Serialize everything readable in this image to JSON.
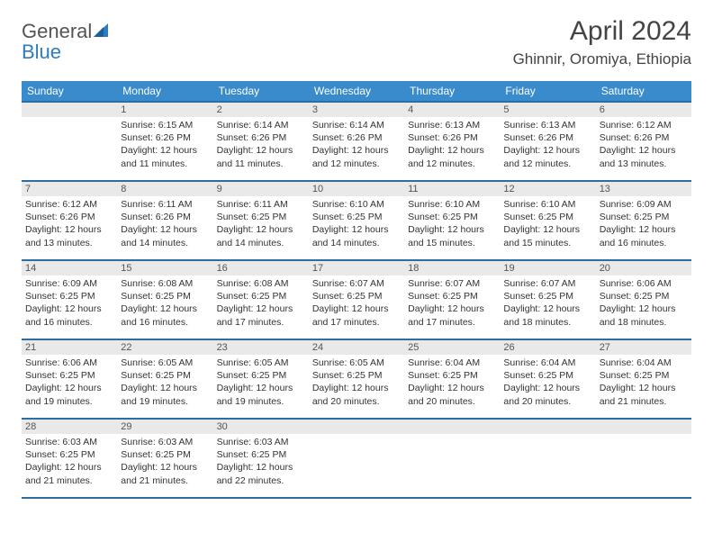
{
  "brand": {
    "name1": "General",
    "name2": "Blue"
  },
  "title": "April 2024",
  "location": "Ghinnir, Oromiya, Ethiopia",
  "weekdays": [
    "Sunday",
    "Monday",
    "Tuesday",
    "Wednesday",
    "Thursday",
    "Friday",
    "Saturday"
  ],
  "colors": {
    "header_bg": "#3a8bcb",
    "header_border": "#2c6da3",
    "daynum_bg": "#e9e9e9"
  },
  "weeks": [
    [
      {
        "day": "",
        "sunrise": "",
        "sunset": "",
        "daylight": ""
      },
      {
        "day": "1",
        "sunrise": "Sunrise: 6:15 AM",
        "sunset": "Sunset: 6:26 PM",
        "daylight": "Daylight: 12 hours and 11 minutes."
      },
      {
        "day": "2",
        "sunrise": "Sunrise: 6:14 AM",
        "sunset": "Sunset: 6:26 PM",
        "daylight": "Daylight: 12 hours and 11 minutes."
      },
      {
        "day": "3",
        "sunrise": "Sunrise: 6:14 AM",
        "sunset": "Sunset: 6:26 PM",
        "daylight": "Daylight: 12 hours and 12 minutes."
      },
      {
        "day": "4",
        "sunrise": "Sunrise: 6:13 AM",
        "sunset": "Sunset: 6:26 PM",
        "daylight": "Daylight: 12 hours and 12 minutes."
      },
      {
        "day": "5",
        "sunrise": "Sunrise: 6:13 AM",
        "sunset": "Sunset: 6:26 PM",
        "daylight": "Daylight: 12 hours and 12 minutes."
      },
      {
        "day": "6",
        "sunrise": "Sunrise: 6:12 AM",
        "sunset": "Sunset: 6:26 PM",
        "daylight": "Daylight: 12 hours and 13 minutes."
      }
    ],
    [
      {
        "day": "7",
        "sunrise": "Sunrise: 6:12 AM",
        "sunset": "Sunset: 6:26 PM",
        "daylight": "Daylight: 12 hours and 13 minutes."
      },
      {
        "day": "8",
        "sunrise": "Sunrise: 6:11 AM",
        "sunset": "Sunset: 6:26 PM",
        "daylight": "Daylight: 12 hours and 14 minutes."
      },
      {
        "day": "9",
        "sunrise": "Sunrise: 6:11 AM",
        "sunset": "Sunset: 6:25 PM",
        "daylight": "Daylight: 12 hours and 14 minutes."
      },
      {
        "day": "10",
        "sunrise": "Sunrise: 6:10 AM",
        "sunset": "Sunset: 6:25 PM",
        "daylight": "Daylight: 12 hours and 14 minutes."
      },
      {
        "day": "11",
        "sunrise": "Sunrise: 6:10 AM",
        "sunset": "Sunset: 6:25 PM",
        "daylight": "Daylight: 12 hours and 15 minutes."
      },
      {
        "day": "12",
        "sunrise": "Sunrise: 6:10 AM",
        "sunset": "Sunset: 6:25 PM",
        "daylight": "Daylight: 12 hours and 15 minutes."
      },
      {
        "day": "13",
        "sunrise": "Sunrise: 6:09 AM",
        "sunset": "Sunset: 6:25 PM",
        "daylight": "Daylight: 12 hours and 16 minutes."
      }
    ],
    [
      {
        "day": "14",
        "sunrise": "Sunrise: 6:09 AM",
        "sunset": "Sunset: 6:25 PM",
        "daylight": "Daylight: 12 hours and 16 minutes."
      },
      {
        "day": "15",
        "sunrise": "Sunrise: 6:08 AM",
        "sunset": "Sunset: 6:25 PM",
        "daylight": "Daylight: 12 hours and 16 minutes."
      },
      {
        "day": "16",
        "sunrise": "Sunrise: 6:08 AM",
        "sunset": "Sunset: 6:25 PM",
        "daylight": "Daylight: 12 hours and 17 minutes."
      },
      {
        "day": "17",
        "sunrise": "Sunrise: 6:07 AM",
        "sunset": "Sunset: 6:25 PM",
        "daylight": "Daylight: 12 hours and 17 minutes."
      },
      {
        "day": "18",
        "sunrise": "Sunrise: 6:07 AM",
        "sunset": "Sunset: 6:25 PM",
        "daylight": "Daylight: 12 hours and 17 minutes."
      },
      {
        "day": "19",
        "sunrise": "Sunrise: 6:07 AM",
        "sunset": "Sunset: 6:25 PM",
        "daylight": "Daylight: 12 hours and 18 minutes."
      },
      {
        "day": "20",
        "sunrise": "Sunrise: 6:06 AM",
        "sunset": "Sunset: 6:25 PM",
        "daylight": "Daylight: 12 hours and 18 minutes."
      }
    ],
    [
      {
        "day": "21",
        "sunrise": "Sunrise: 6:06 AM",
        "sunset": "Sunset: 6:25 PM",
        "daylight": "Daylight: 12 hours and 19 minutes."
      },
      {
        "day": "22",
        "sunrise": "Sunrise: 6:05 AM",
        "sunset": "Sunset: 6:25 PM",
        "daylight": "Daylight: 12 hours and 19 minutes."
      },
      {
        "day": "23",
        "sunrise": "Sunrise: 6:05 AM",
        "sunset": "Sunset: 6:25 PM",
        "daylight": "Daylight: 12 hours and 19 minutes."
      },
      {
        "day": "24",
        "sunrise": "Sunrise: 6:05 AM",
        "sunset": "Sunset: 6:25 PM",
        "daylight": "Daylight: 12 hours and 20 minutes."
      },
      {
        "day": "25",
        "sunrise": "Sunrise: 6:04 AM",
        "sunset": "Sunset: 6:25 PM",
        "daylight": "Daylight: 12 hours and 20 minutes."
      },
      {
        "day": "26",
        "sunrise": "Sunrise: 6:04 AM",
        "sunset": "Sunset: 6:25 PM",
        "daylight": "Daylight: 12 hours and 20 minutes."
      },
      {
        "day": "27",
        "sunrise": "Sunrise: 6:04 AM",
        "sunset": "Sunset: 6:25 PM",
        "daylight": "Daylight: 12 hours and 21 minutes."
      }
    ],
    [
      {
        "day": "28",
        "sunrise": "Sunrise: 6:03 AM",
        "sunset": "Sunset: 6:25 PM",
        "daylight": "Daylight: 12 hours and 21 minutes."
      },
      {
        "day": "29",
        "sunrise": "Sunrise: 6:03 AM",
        "sunset": "Sunset: 6:25 PM",
        "daylight": "Daylight: 12 hours and 21 minutes."
      },
      {
        "day": "30",
        "sunrise": "Sunrise: 6:03 AM",
        "sunset": "Sunset: 6:25 PM",
        "daylight": "Daylight: 12 hours and 22 minutes."
      },
      {
        "day": "",
        "sunrise": "",
        "sunset": "",
        "daylight": ""
      },
      {
        "day": "",
        "sunrise": "",
        "sunset": "",
        "daylight": ""
      },
      {
        "day": "",
        "sunrise": "",
        "sunset": "",
        "daylight": ""
      },
      {
        "day": "",
        "sunrise": "",
        "sunset": "",
        "daylight": ""
      }
    ]
  ]
}
